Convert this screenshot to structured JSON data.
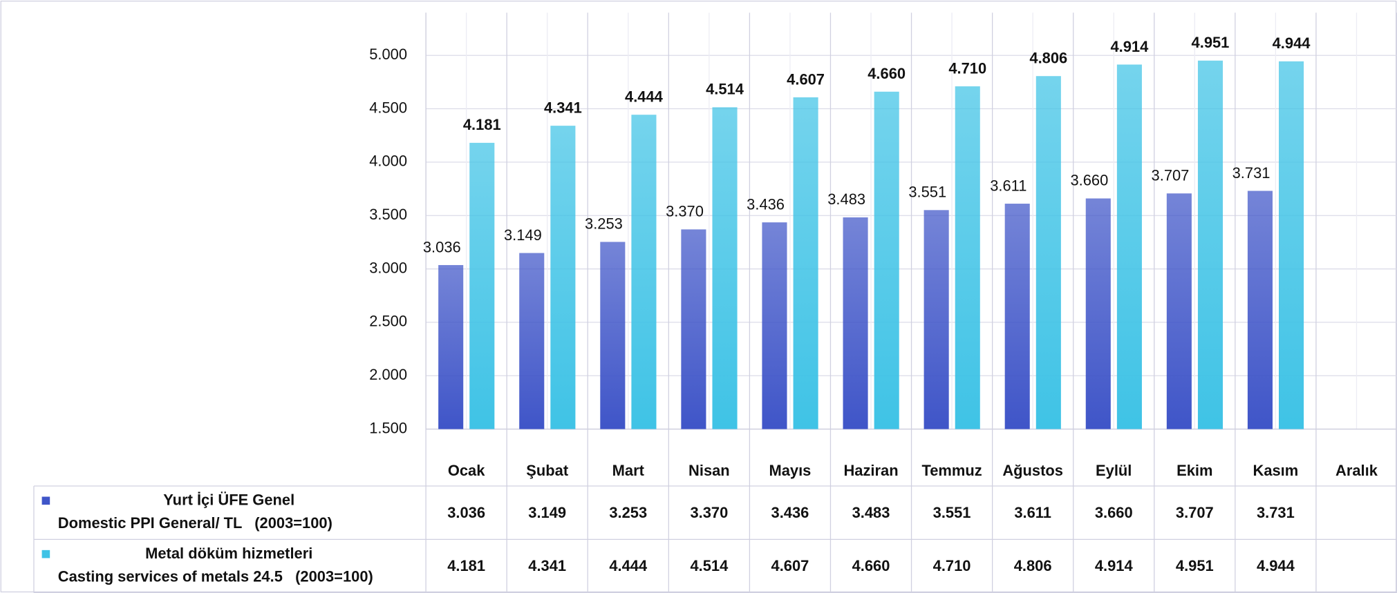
{
  "chart_data": {
    "type": "bar",
    "categories": [
      "Ocak",
      "Şubat",
      "Mart",
      "Nisan",
      "Mayıs",
      "Haziran",
      "Temmuz",
      "Ağustos",
      "Eylül",
      "Ekim",
      "Kasım",
      "Aralık"
    ],
    "series": [
      {
        "name": "Yurt İçi ÜFE Genel",
        "name_en": "Domestic PPI General/ TL   (2003=100)",
        "color": "#3f55c8",
        "values": [
          3036,
          3149,
          3253,
          3370,
          3436,
          3483,
          3551,
          3611,
          3660,
          3707,
          3731,
          null
        ],
        "value_labels": [
          "3.036",
          "3.149",
          "3.253",
          "3.370",
          "3.436",
          "3.483",
          "3.551",
          "3.611",
          "3.660",
          "3.707",
          "3.731",
          null
        ]
      },
      {
        "name": "Metal döküm hizmetleri",
        "name_en": "Casting services of metals 24.5   (2003=100)",
        "color": "#3fc3e6",
        "values": [
          4181,
          4341,
          4444,
          4514,
          4607,
          4660,
          4710,
          4806,
          4914,
          4951,
          4944,
          null
        ],
        "value_labels": [
          "4.181",
          "4.341",
          "4.444",
          "4.514",
          "4.607",
          "4.660",
          "4.710",
          "4.806",
          "4.914",
          "4.951",
          "4.944",
          null
        ]
      }
    ],
    "ylim": [
      1500,
      5000
    ],
    "yticks": [
      {
        "value": 1500,
        "label": "1.500"
      },
      {
        "value": 2000,
        "label": "2.000"
      },
      {
        "value": 2500,
        "label": "2.500"
      },
      {
        "value": 3000,
        "label": "3.000"
      },
      {
        "value": 3500,
        "label": "3.500"
      },
      {
        "value": 4000,
        "label": "4.000"
      },
      {
        "value": 4500,
        "label": "4.500"
      },
      {
        "value": 5000,
        "label": "5.000"
      }
    ],
    "grid": true
  }
}
